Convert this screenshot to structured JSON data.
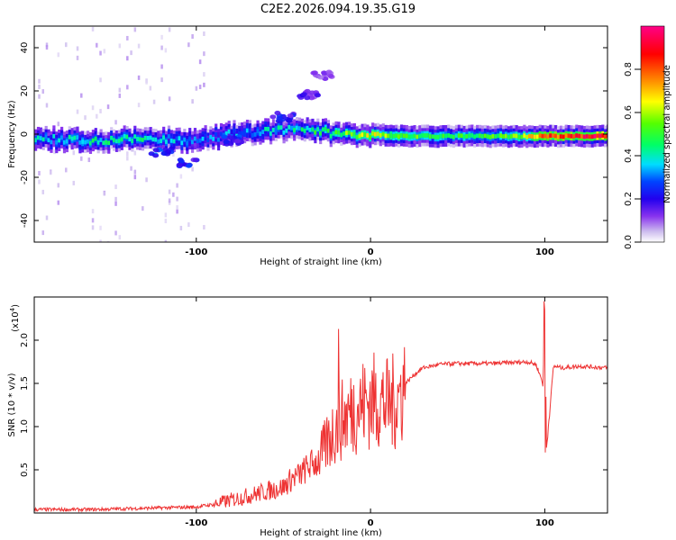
{
  "figure_title": "C2E2.2026.094.19.35.G19",
  "chart_data": [
    {
      "type": "heatmap",
      "xlabel": "Height of straight line (km)",
      "ylabel": "Frequency (Hz)",
      "xlim": [
        -193,
        136
      ],
      "ylim": [
        -50,
        50
      ],
      "x_ticks": [
        -100,
        0,
        100
      ],
      "x_tick_labels": [
        "-100",
        "0",
        "100"
      ],
      "y_ticks": [
        -40,
        -20,
        0,
        20,
        40
      ],
      "y_tick_labels": [
        "-40",
        "-20",
        "0",
        "20",
        "40"
      ],
      "colorbar": {
        "label": "Normalized spectral amplitude",
        "range": [
          0,
          1
        ],
        "ticks": [
          0.0,
          0.2,
          0.4,
          0.6,
          0.8
        ],
        "tick_labels": [
          "0.0",
          "0.2",
          "0.4",
          "0.6",
          "0.8"
        ],
        "colors": [
          "#ffffff",
          "#ccbbee",
          "#8833ee",
          "#2200ee",
          "#0044ff",
          "#00ddff",
          "#00ff66",
          "#55ff00",
          "#ffff00",
          "#ff8800",
          "#ff0000",
          "#ff0088"
        ]
      },
      "ridge": [
        {
          "x": -193,
          "freq": -2,
          "amp": 0.45
        },
        {
          "x": -160,
          "freq": -3,
          "amp": 0.5
        },
        {
          "x": -130,
          "freq": -2,
          "amp": 0.5
        },
        {
          "x": -100,
          "freq": -3,
          "amp": 0.4
        },
        {
          "x": -80,
          "freq": 0,
          "amp": 0.4
        },
        {
          "x": -60,
          "freq": 1,
          "amp": 0.45
        },
        {
          "x": -40,
          "freq": 3,
          "amp": 0.5
        },
        {
          "x": -20,
          "freq": 0,
          "amp": 0.6
        },
        {
          "x": 0,
          "freq": 0,
          "amp": 0.7
        },
        {
          "x": 20,
          "freq": -1,
          "amp": 0.6
        },
        {
          "x": 50,
          "freq": -1,
          "amp": 0.55
        },
        {
          "x": 80,
          "freq": -1,
          "amp": 0.6
        },
        {
          "x": 100,
          "freq": -1,
          "amp": 0.85
        },
        {
          "x": 136,
          "freq": -1,
          "amp": 0.95
        }
      ],
      "branches": [
        {
          "x": -120,
          "freq": -8,
          "amp": 0.4
        },
        {
          "x": -105,
          "freq": -13,
          "amp": 0.35
        },
        {
          "x": -80,
          "freq": -3,
          "amp": 0.35
        },
        {
          "x": -50,
          "freq": 8,
          "amp": 0.3
        },
        {
          "x": -35,
          "freq": 18,
          "amp": 0.25
        },
        {
          "x": -28,
          "freq": 27,
          "amp": 0.2
        }
      ]
    },
    {
      "type": "line",
      "xlabel": "Height of straight line (km)",
      "ylabel": "SNR (10 * v/v)",
      "scale_label": "(x10",
      "scale_exponent": "4",
      "xlim": [
        -193,
        136
      ],
      "ylim": [
        0.0,
        2.5
      ],
      "x_ticks": [
        -100,
        0,
        100
      ],
      "x_tick_labels": [
        "-100",
        "0",
        "100"
      ],
      "y_ticks": [
        0.5,
        1.0,
        1.5,
        2.0
      ],
      "y_tick_labels": [
        "0.5",
        "1.0",
        "1.5",
        "2.0"
      ],
      "line_color": "#ee3333",
      "series": [
        {
          "name": "SNR",
          "x": [
            -193,
            -160,
            -120,
            -100,
            -90,
            -80,
            -70,
            -60,
            -50,
            -45,
            -40,
            -35,
            -30,
            -25,
            -20,
            -15,
            -10,
            -5,
            0,
            5,
            10,
            15,
            20,
            25,
            30,
            40,
            50,
            60,
            70,
            80,
            90,
            95,
            99,
            100,
            101,
            105,
            110,
            120,
            136
          ],
          "y": [
            0.04,
            0.04,
            0.06,
            0.07,
            0.1,
            0.15,
            0.2,
            0.25,
            0.3,
            0.4,
            0.45,
            0.55,
            0.6,
            0.8,
            1.0,
            1.1,
            1.2,
            1.25,
            1.3,
            1.3,
            1.25,
            1.3,
            1.5,
            1.6,
            1.68,
            1.72,
            1.73,
            1.73,
            1.73,
            1.74,
            1.75,
            1.72,
            1.5,
            2.4,
            0.75,
            1.7,
            1.68,
            1.7,
            1.68
          ]
        }
      ],
      "peak_annotations": [
        {
          "x": -18,
          "y": 2.13
        },
        {
          "x": 100,
          "y": 2.45
        },
        {
          "x": 100,
          "y": 0.7
        }
      ]
    }
  ]
}
